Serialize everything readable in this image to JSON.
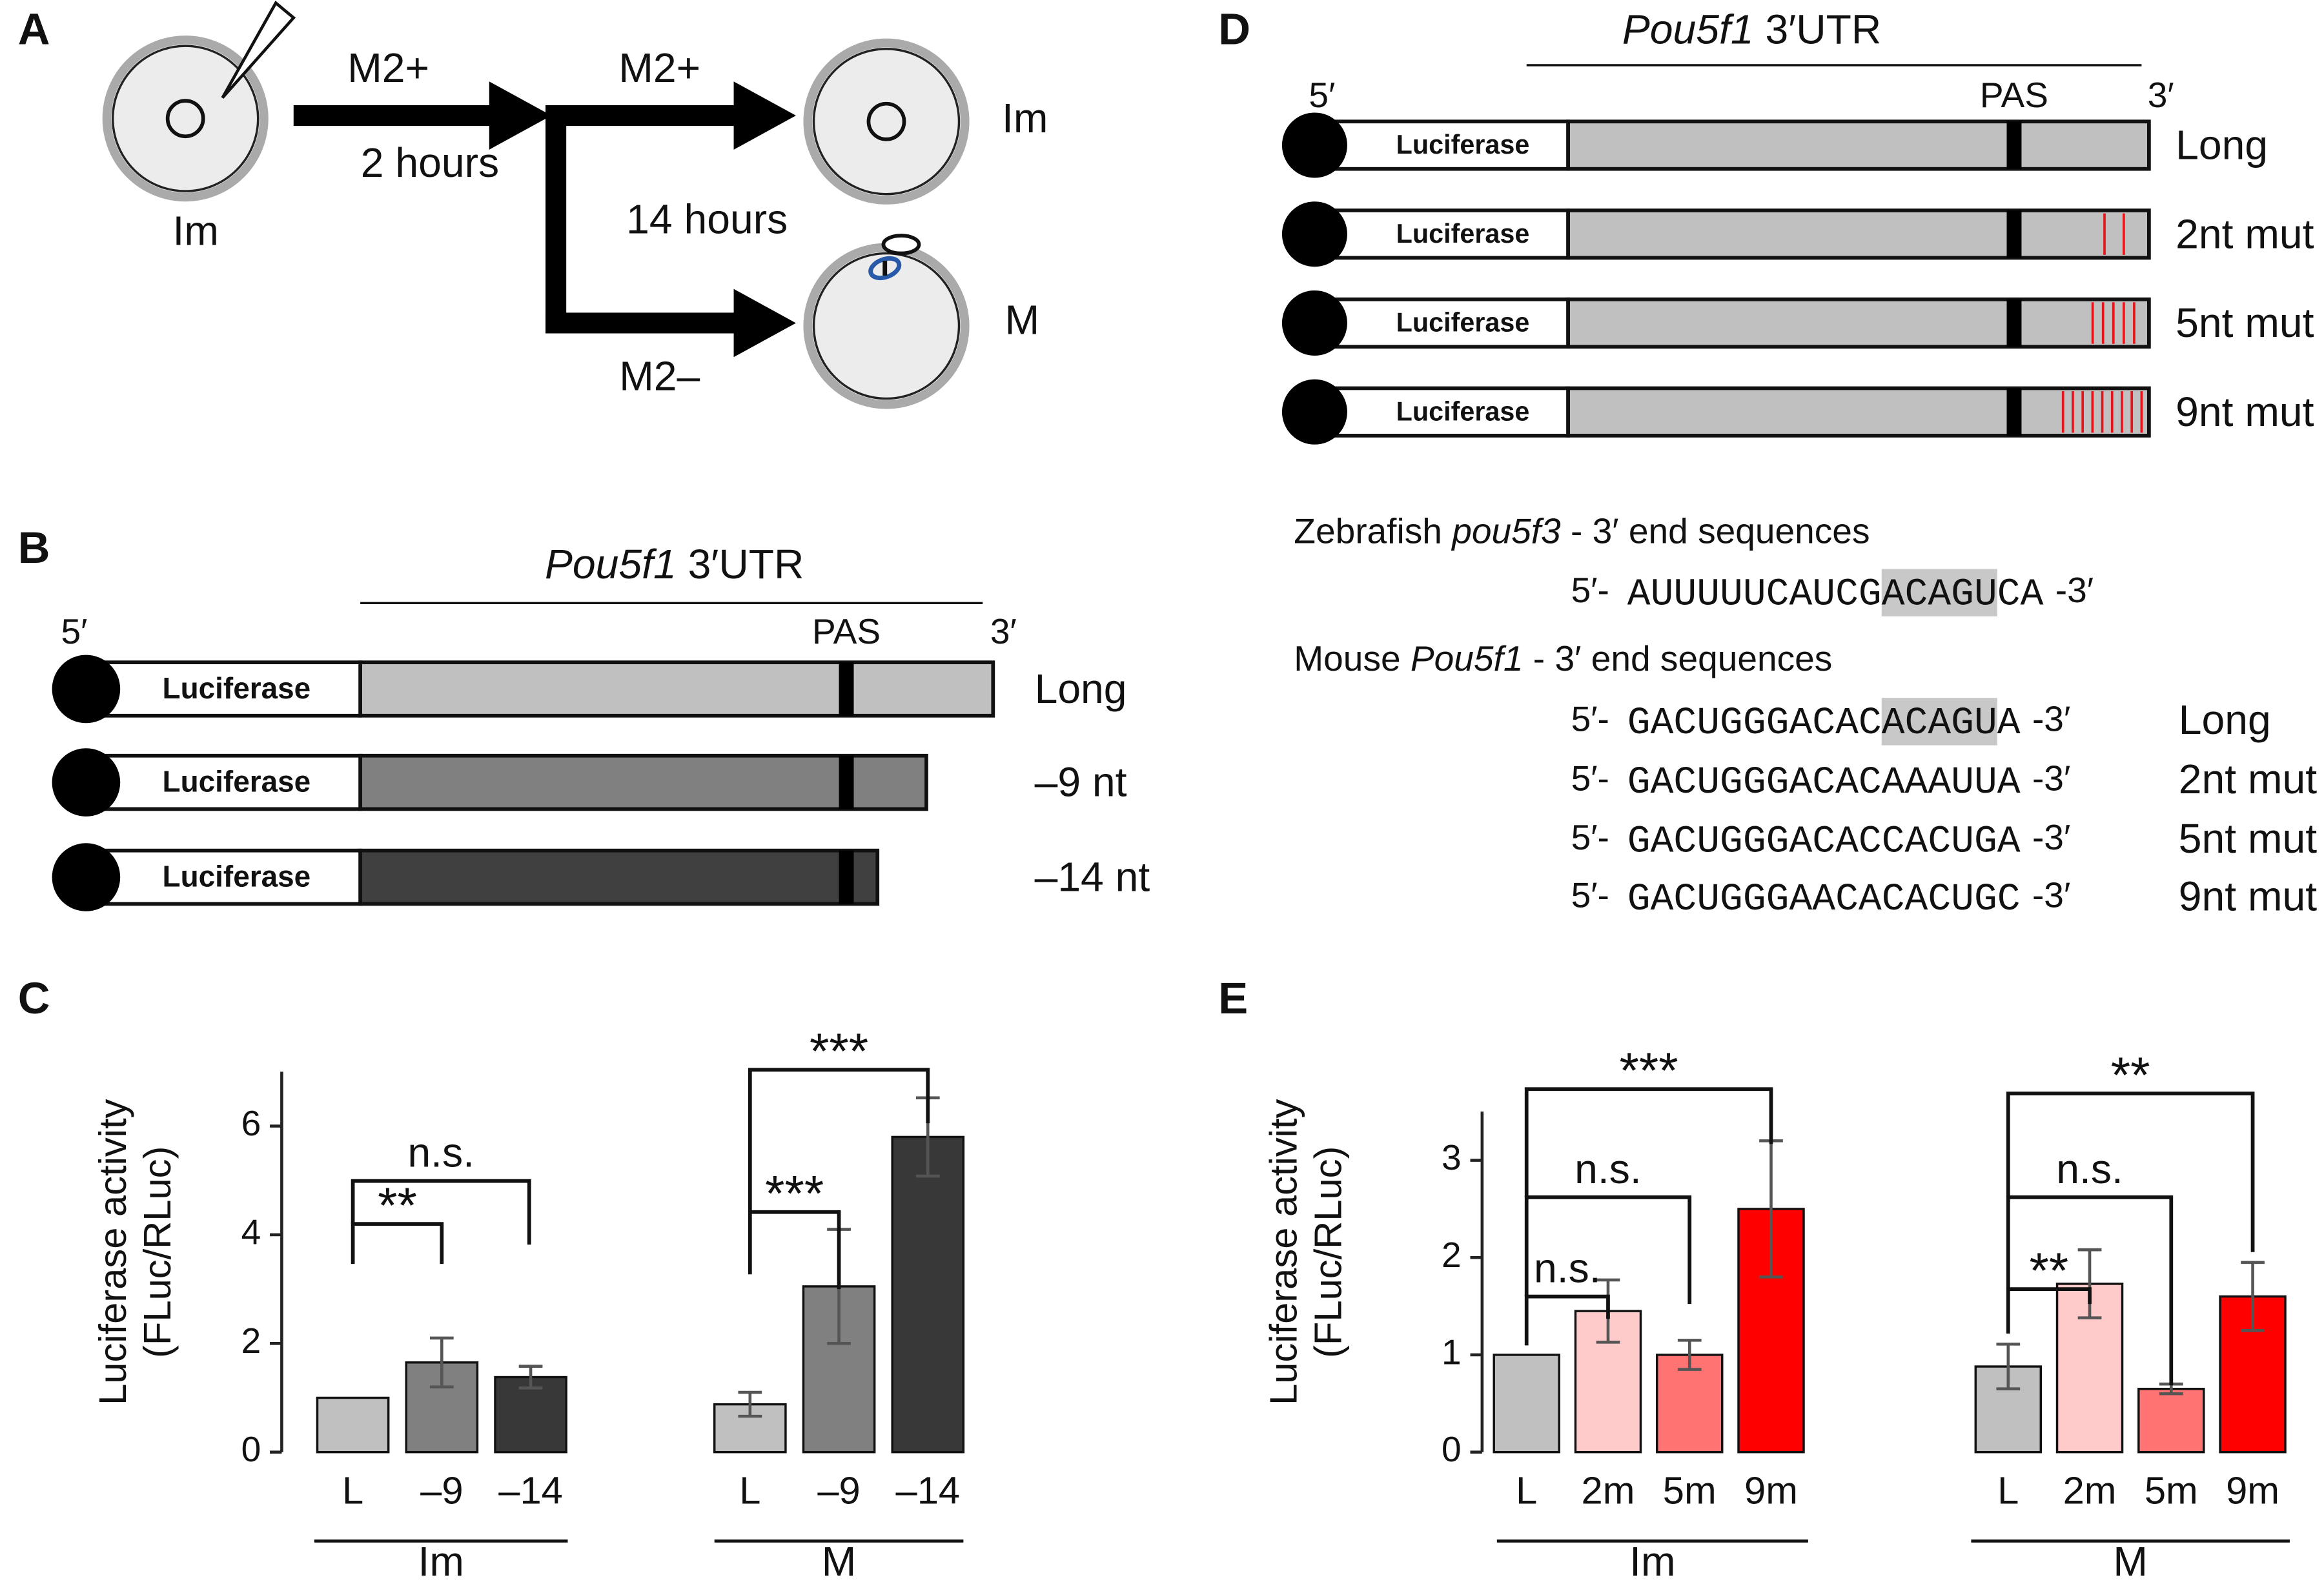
{
  "panel_labels": [
    "A",
    "B",
    "C",
    "D",
    "E"
  ],
  "panel_a": {
    "step1_medium": "M2+",
    "step1_time": "2 hours",
    "start_label": "Im",
    "upper_medium": "M2+",
    "step2_time": "14 hours",
    "lower_medium": "M2–",
    "upper_result": "Im",
    "lower_result": "M"
  },
  "panel_b": {
    "title_gene": "Pou5f1",
    "title_rest": " 3′UTR",
    "five_prime": "5′",
    "three_prime": "3′",
    "pas": "PAS",
    "constructs": [
      {
        "reporter": "Luciferase",
        "name": "Long",
        "color": "#c0c0c0"
      },
      {
        "reporter": "Luciferase",
        "name": "–9 nt",
        "color": "#808080"
      },
      {
        "reporter": "Luciferase",
        "name": "–14 nt",
        "color": "#404040"
      }
    ]
  },
  "panel_d": {
    "title_gene": "Pou5f1",
    "title_rest": " 3′UTR",
    "five_prime": "5′",
    "three_prime": "3′",
    "pas": "PAS",
    "constructs": [
      {
        "reporter": "Luciferase",
        "name": "Long",
        "color": "#c0c0c0"
      },
      {
        "reporter": "Luciferase",
        "name": "2nt mut",
        "color": "#c0c0c0"
      },
      {
        "reporter": "Luciferase",
        "name": "5nt mut",
        "color": "#c0c0c0"
      },
      {
        "reporter": "Luciferase",
        "name": "9nt mut",
        "color": "#c0c0c0"
      }
    ],
    "zebrafish_heading": {
      "pre": "Zebrafish ",
      "gene": "pou5f3",
      "post": " - 3′ end sequences"
    },
    "zebrafish_sequence": {
      "prefix": "5′-",
      "segments": [
        {
          "text": "AUUUUUCAUCG"
        },
        {
          "text": "ACAGU",
          "highlight": "#c8c8c8"
        },
        {
          "text": "CA"
        }
      ],
      "suffix": "-3′"
    },
    "mouse_heading": {
      "pre": "Mouse ",
      "gene": "Pou5f1",
      "post": " - 3′ end sequences"
    },
    "mouse_sequences": [
      {
        "prefix": "5′-",
        "segments": [
          {
            "text": "GACUGGGACAC"
          },
          {
            "text": "ACAGU",
            "highlight": "#c8c8c8"
          },
          {
            "text": "A"
          }
        ],
        "suffix": "-3′",
        "name": "Long"
      },
      {
        "prefix": "5′-",
        "segments": [
          {
            "text": "GACUGGGACACA"
          },
          {
            "text": "A",
            "color": "#e8141b"
          },
          {
            "text": "A"
          },
          {
            "text": "U",
            "color": "#e8141b"
          },
          {
            "text": "UA"
          }
        ],
        "suffix": "-3′",
        "name": "2nt mut"
      },
      {
        "prefix": "5′-",
        "segments": [
          {
            "text": "GACUGGGACAC"
          },
          {
            "text": "CACUG",
            "color": "#e8141b"
          },
          {
            "text": "A"
          }
        ],
        "suffix": "-3′",
        "name": "5nt mut"
      },
      {
        "prefix": "5′-",
        "segments": [
          {
            "text": "GACUGGGA"
          },
          {
            "text": "ACACACUGC",
            "color": "#e8141b"
          }
        ],
        "suffix": "-3′",
        "name": "9nt mut"
      }
    ]
  },
  "chart_data": [
    {
      "type": "bar",
      "y_label": [
        "Luciferase activity",
        "(FLuc/RLuc)"
      ],
      "categories": [
        "Im",
        "M"
      ],
      "series": [
        {
          "name": "L",
          "color": "#c0c0c0",
          "values": [
            1,
            0.88
          ],
          "errors": [
            null,
            0.22
          ]
        },
        {
          "name": "–9",
          "color": "#808080",
          "values": [
            1.65,
            3.05
          ],
          "errors": [
            0.45,
            1.05
          ]
        },
        {
          "name": "–14",
          "color": "#383838",
          "values": [
            1.38,
            5.8
          ],
          "errors": [
            0.2,
            0.72
          ]
        }
      ],
      "ylim": [
        0,
        7
      ],
      "yticks": [
        0,
        2,
        4,
        6
      ],
      "annotations": [
        "**",
        "n.s.",
        "***",
        "***"
      ]
    },
    {
      "type": "bar",
      "y_label": [
        "Luciferase activity",
        "(FLuc/RLuc)"
      ],
      "categories": [
        "Im",
        "M"
      ],
      "series": [
        {
          "name": "L",
          "color": "#c0c0c0",
          "values": [
            1,
            0.88
          ],
          "errors": [
            null,
            0.23
          ]
        },
        {
          "name": "2m",
          "color": "#ffcaca",
          "values": [
            1.45,
            1.73
          ],
          "errors": [
            0.32,
            0.35
          ]
        },
        {
          "name": "5m",
          "color": "#ff7373",
          "values": [
            1.0,
            0.65
          ],
          "errors": [
            0.15,
            0.05
          ]
        },
        {
          "name": "9m",
          "color": "#ff0000",
          "values": [
            2.5,
            1.6
          ],
          "errors": [
            0.7,
            0.35
          ]
        }
      ],
      "ylim": [
        0,
        3.5
      ],
      "yticks": [
        0,
        1,
        2,
        3
      ],
      "annotations": [
        "***",
        "n.s.",
        "n.s.",
        "**",
        "n.s.",
        "**"
      ]
    }
  ]
}
